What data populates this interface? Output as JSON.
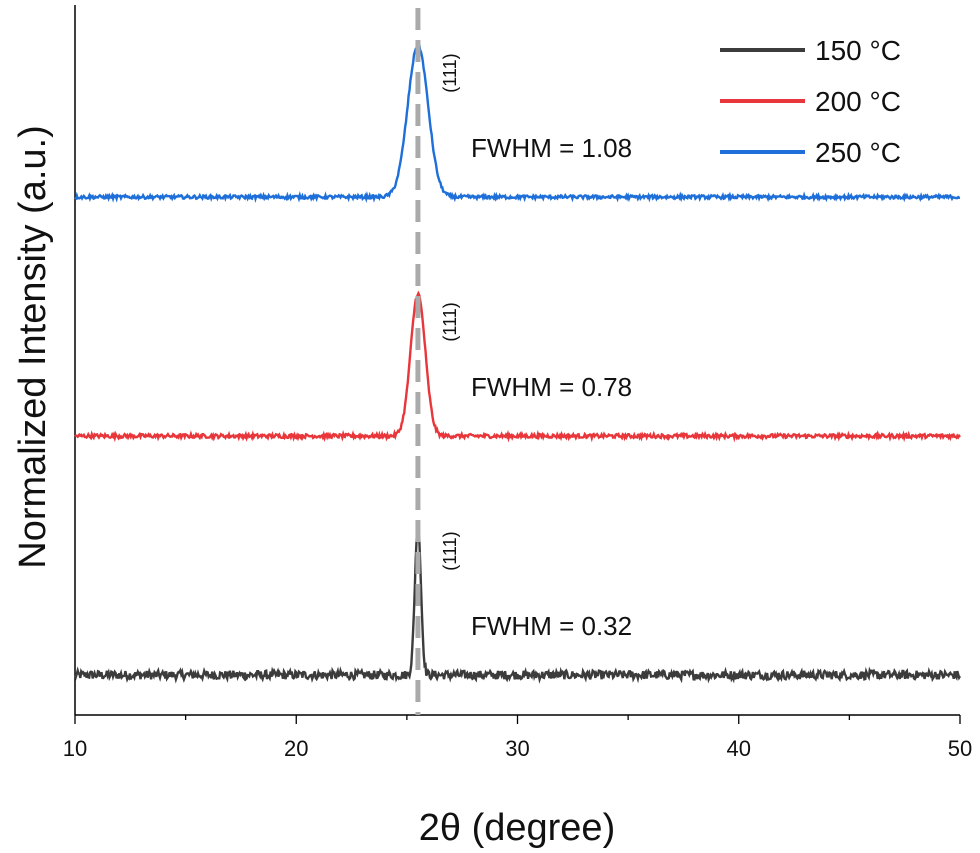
{
  "chart_data": {
    "type": "line",
    "xlabel": "2θ (degree)",
    "ylabel": "Normalized Intensity (a.u.)",
    "xlim": [
      10,
      50
    ],
    "xticks": [
      10,
      20,
      30,
      40,
      50
    ],
    "yticks": [],
    "grid": false,
    "legend_position": "top-right",
    "reference_line": {
      "x": 25.5,
      "style": "dashed",
      "color": "#aaaaaa"
    },
    "series": [
      {
        "name": "150 °C",
        "color": "#3c3c3c",
        "offset": 0,
        "peak": {
          "x": 25.5,
          "fwhm": 0.32,
          "height": 0.62
        },
        "noise": 0.018,
        "peak_label": "(111)",
        "fwhm_label": "FWHM = 0.32"
      },
      {
        "name": "200 °C",
        "color": "#e8363a",
        "offset": 1,
        "peak": {
          "x": 25.5,
          "fwhm": 0.78,
          "height": 0.58
        },
        "noise": 0.008,
        "peak_label": "(111)",
        "fwhm_label": "FWHM = 0.78"
      },
      {
        "name": "250 °C",
        "color": "#1e6fd9",
        "offset": 2,
        "peak": {
          "x": 25.5,
          "fwhm": 1.08,
          "height": 0.62
        },
        "noise": 0.007,
        "peak_label": "(111)",
        "fwhm_label": "FWHM = 1.08"
      }
    ]
  }
}
